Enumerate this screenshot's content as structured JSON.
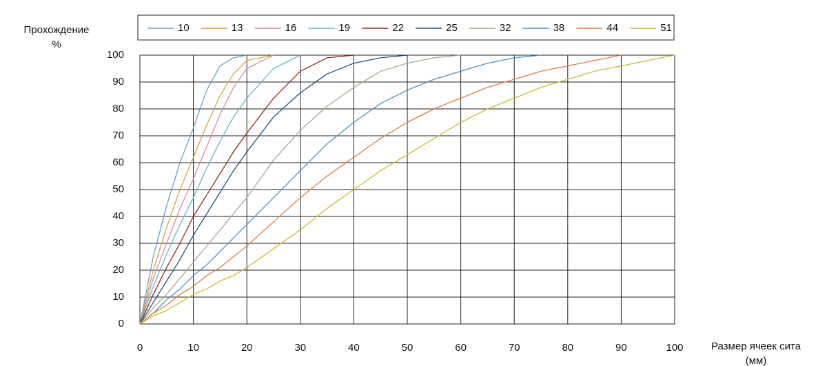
{
  "chart_data": {
    "type": "line",
    "ylabel": [
      "Прохождение",
      "%"
    ],
    "xlabel": [
      "Размер ячеек сита",
      "(мм)"
    ],
    "x": [
      0,
      2.5,
      5,
      7.5,
      10,
      12.5,
      15,
      17.5,
      20,
      25,
      30,
      35,
      40,
      45,
      50,
      55,
      60,
      65,
      70,
      75,
      80,
      85,
      90,
      95,
      100
    ],
    "series": [
      {
        "name": "10",
        "color": "#6b9bc3",
        "values": [
          0,
          25,
          44,
          60,
          73,
          87,
          96,
          99,
          100,
          null,
          null,
          null,
          null,
          null,
          null,
          null,
          null,
          null,
          null,
          null,
          null,
          null,
          null,
          null,
          null
        ]
      },
      {
        "name": "13",
        "color": "#d4a23c",
        "values": [
          0,
          20,
          36,
          50,
          62,
          74,
          85,
          93,
          98,
          100,
          null,
          null,
          null,
          null,
          null,
          null,
          null,
          null,
          null,
          null,
          null,
          null,
          null,
          null,
          null
        ]
      },
      {
        "name": "16",
        "color": "#d48a9a",
        "values": [
          0,
          17,
          30,
          43,
          54,
          66,
          78,
          88,
          95,
          100,
          null,
          null,
          null,
          null,
          null,
          null,
          null,
          null,
          null,
          null,
          null,
          null,
          null,
          null,
          null
        ]
      },
      {
        "name": "19",
        "color": "#5fb8c8",
        "values": [
          0,
          14,
          26,
          37,
          47,
          58,
          68,
          77,
          84,
          95,
          100,
          null,
          null,
          null,
          null,
          null,
          null,
          null,
          null,
          null,
          null,
          null,
          null,
          null,
          null
        ]
      },
      {
        "name": "22",
        "color": "#8b2a1a",
        "values": [
          0,
          11,
          21,
          30,
          40,
          48,
          56,
          64,
          71,
          84,
          94,
          99,
          100,
          null,
          null,
          null,
          null,
          null,
          null,
          null,
          null,
          null,
          null,
          null,
          null
        ]
      },
      {
        "name": "25",
        "color": "#1f4e79",
        "values": [
          0,
          8,
          16,
          24,
          33,
          41,
          49,
          57,
          64,
          77,
          86,
          93,
          97,
          99,
          100,
          null,
          null,
          null,
          null,
          null,
          null,
          null,
          null,
          null,
          null
        ]
      },
      {
        "name": "32",
        "color": "#a8a68a",
        "values": [
          0,
          6,
          11,
          17,
          23,
          29,
          35,
          41,
          47,
          61,
          72,
          81,
          88,
          94,
          97,
          99,
          100,
          null,
          null,
          null,
          null,
          null,
          null,
          null,
          null
        ]
      },
      {
        "name": "38",
        "color": "#4a90b8",
        "values": [
          0,
          4,
          9,
          13,
          18,
          22,
          27,
          32,
          37,
          47,
          57,
          67,
          75,
          82,
          87,
          91,
          94,
          97,
          99,
          100,
          null,
          null,
          null,
          null,
          null
        ]
      },
      {
        "name": "44",
        "color": "#e07b39",
        "values": [
          0,
          4,
          7,
          11,
          14,
          18,
          21,
          25,
          29,
          38,
          47,
          55,
          62,
          69,
          75,
          80,
          84,
          88,
          91,
          94,
          96,
          98,
          100,
          null,
          null
        ]
      },
      {
        "name": "51",
        "color": "#c8b830",
        "values": [
          0,
          3,
          5,
          8,
          11,
          13,
          16,
          18,
          21,
          28,
          35,
          43,
          50,
          57,
          63,
          69,
          75,
          80,
          84,
          88,
          91,
          94,
          96,
          98,
          100
        ]
      }
    ],
    "xlim": [
      0,
      100
    ],
    "xticks": [
      0,
      10,
      20,
      30,
      40,
      50,
      60,
      70,
      80,
      90,
      100
    ],
    "ylim": [
      0,
      100
    ],
    "yticks": [
      0,
      10,
      20,
      30,
      40,
      50,
      60,
      70,
      80,
      90,
      100
    ],
    "grid": true
  }
}
